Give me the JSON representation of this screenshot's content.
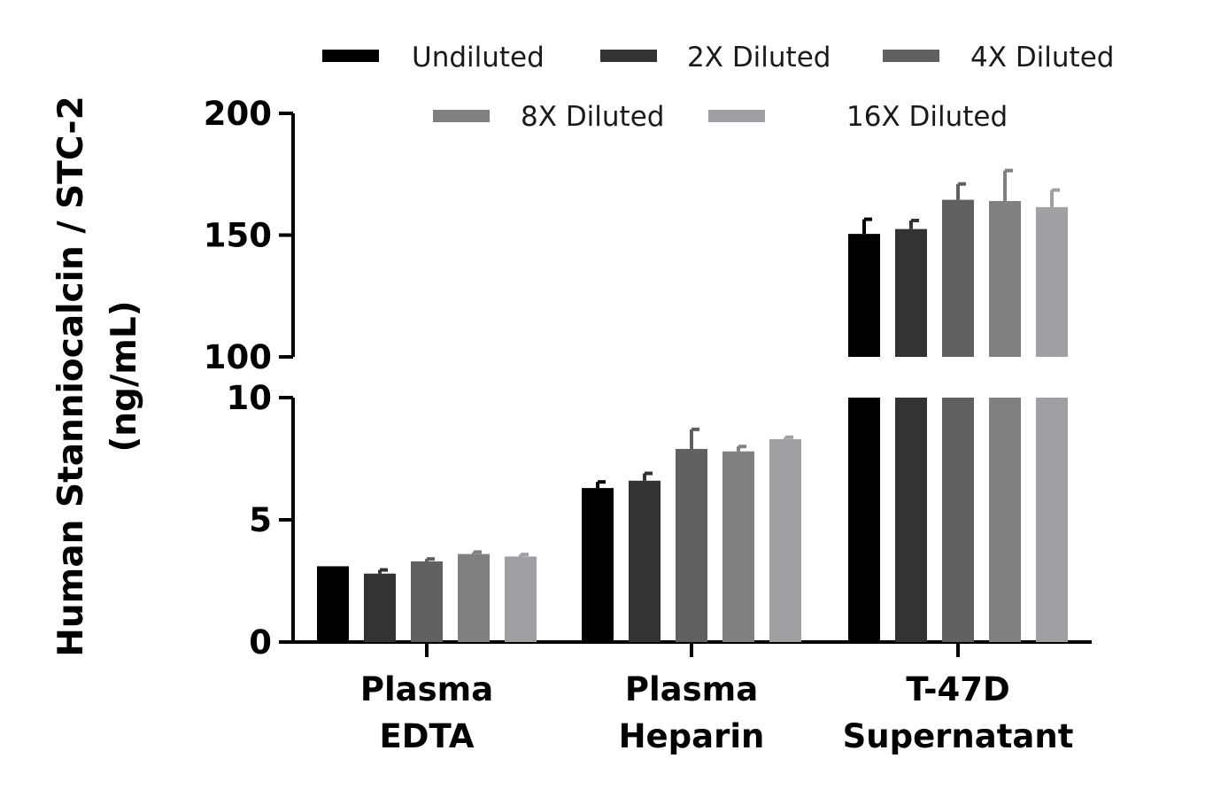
{
  "chart_data": {
    "type": "bar",
    "title": "",
    "ylabel": [
      "Human Stanniocalcin / STC-2",
      "(ng/mL)"
    ],
    "xlabel": "",
    "categories": [
      [
        "Plasma",
        "EDTA"
      ],
      [
        "Plasma",
        "Heparin"
      ],
      [
        "T-47D",
        "Supernatant"
      ]
    ],
    "y_axis_broken": true,
    "y_segments": [
      {
        "range": [
          0,
          10
        ],
        "ticks": [
          "0",
          "5",
          "10"
        ],
        "tick_values": [
          0,
          5,
          10
        ]
      },
      {
        "range": [
          100,
          200
        ],
        "ticks": [
          "100",
          "150",
          "200"
        ],
        "tick_values": [
          100,
          150,
          200
        ]
      }
    ],
    "legend_position": "top",
    "grid": false,
    "series": [
      {
        "name": "Undiluted",
        "color": "#000000",
        "values": [
          3.1,
          6.3,
          150.5
        ],
        "errors": [
          0.0,
          0.25,
          6.0
        ]
      },
      {
        "name": "2X Diluted",
        "color": "#333333",
        "values": [
          2.8,
          6.6,
          152.5
        ],
        "errors": [
          0.15,
          0.3,
          3.5
        ]
      },
      {
        "name": "4X Diluted",
        "color": "#606060",
        "values": [
          3.3,
          7.9,
          164.5
        ],
        "errors": [
          0.1,
          0.8,
          6.5
        ]
      },
      {
        "name": "8X Diluted",
        "color": "#808080",
        "values": [
          3.6,
          7.8,
          164.0
        ],
        "errors": [
          0.08,
          0.2,
          12.5
        ]
      },
      {
        "name": "16X Diluted",
        "color": "#a0a0a4",
        "values": [
          3.5,
          8.3,
          161.5
        ],
        "errors": [
          0.08,
          0.08,
          7.0
        ]
      }
    ]
  }
}
